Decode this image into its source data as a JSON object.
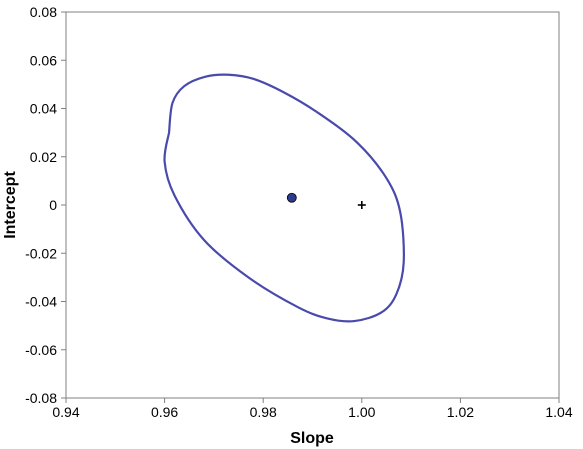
{
  "chart_data": {
    "type": "scatter",
    "title": "",
    "xlabel": "Slope",
    "ylabel": "Intercept",
    "xlim": [
      0.94,
      1.04
    ],
    "ylim": [
      -0.08,
      0.08
    ],
    "x_ticks": [
      0.94,
      0.96,
      0.98,
      1.0,
      1.02,
      1.04
    ],
    "y_ticks": [
      -0.08,
      -0.06,
      -0.04,
      -0.02,
      0,
      0.02,
      0.04,
      0.06,
      0.08
    ],
    "x_tick_labels": [
      "0.94",
      "0.96",
      "0.98",
      "1.00",
      "1.02",
      "1.04"
    ],
    "y_tick_labels": [
      "-0.08",
      "-0.06",
      "-0.04",
      "-0.02",
      "0",
      "0.02",
      "0.04",
      "0.06",
      "0.08"
    ],
    "grid": false,
    "legend": "none",
    "series": [
      {
        "kind": "ellipse",
        "color": "#4a4aad",
        "points": [
          [
            0.9609,
            0.03
          ],
          [
            0.9616,
            0.0423
          ],
          [
            0.964,
            0.0493
          ],
          [
            0.9683,
            0.0532
          ],
          [
            0.973,
            0.054
          ],
          [
            0.978,
            0.0523
          ],
          [
            0.984,
            0.0469
          ],
          [
            0.991,
            0.0384
          ],
          [
            0.999,
            0.026
          ],
          [
            1.005,
            0.0111
          ],
          [
            1.0078,
            -0.003
          ],
          [
            1.0085,
            -0.0238
          ],
          [
            1.007,
            -0.037
          ],
          [
            1.004,
            -0.0445
          ],
          [
            0.9985,
            -0.0481
          ],
          [
            0.993,
            -0.047
          ],
          [
            0.987,
            -0.0423
          ],
          [
            0.977,
            -0.03
          ],
          [
            0.968,
            -0.0145
          ],
          [
            0.962,
            0.004
          ],
          [
            0.96,
            0.018
          ],
          [
            0.9609,
            0.03
          ]
        ]
      },
      {
        "kind": "point",
        "marker": "circle",
        "color": "#2e3a8c",
        "x": 0.9858,
        "y": 0.003
      },
      {
        "kind": "point",
        "marker": "plus",
        "color": "#000000",
        "x": 1.0,
        "y": 0.0
      }
    ]
  }
}
